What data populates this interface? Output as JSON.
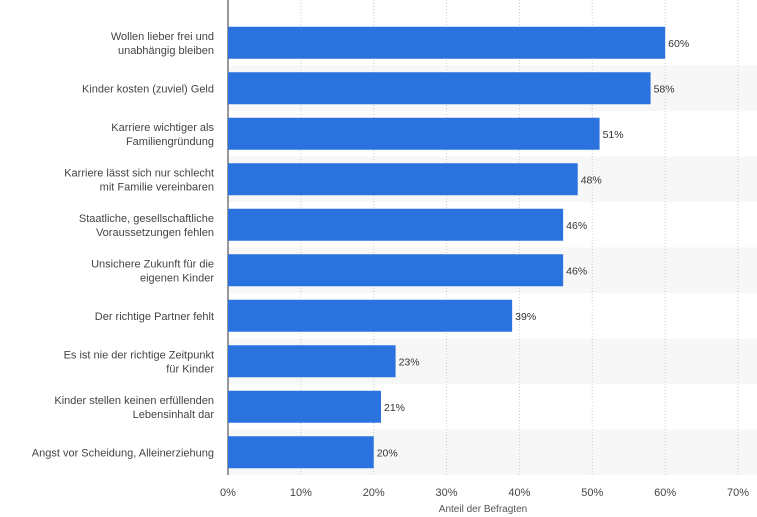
{
  "chart_data": {
    "type": "bar",
    "orientation": "horizontal",
    "categories": [
      [
        "Wollen lieber frei und",
        "unabhängig bleiben"
      ],
      [
        "Kinder kosten (zuviel) Geld"
      ],
      [
        "Karriere wichtiger als",
        "Familiengründung"
      ],
      [
        "Karriere lässt sich nur schlecht",
        "mit Familie vereinbaren"
      ],
      [
        "Staatliche, gesellschaftliche",
        "Voraussetzungen fehlen"
      ],
      [
        "Unsichere Zukunft für die",
        "eigenen Kinder"
      ],
      [
        "Der richtige Partner fehlt"
      ],
      [
        "Es ist nie der richtige Zeitpunkt",
        "für Kinder"
      ],
      [
        "Kinder stellen keinen erfüllenden",
        "Lebensinhalt dar"
      ],
      [
        "Angst vor Scheidung, Alleinerziehung"
      ]
    ],
    "values": [
      60,
      58,
      51,
      48,
      46,
      46,
      39,
      23,
      21,
      20
    ],
    "value_labels": [
      "60%",
      "58%",
      "51%",
      "48%",
      "46%",
      "46%",
      "39%",
      "23%",
      "21%",
      "20%"
    ],
    "xlim": [
      0,
      70
    ],
    "xticks": [
      0,
      10,
      20,
      30,
      40,
      50,
      60,
      70
    ],
    "xtick_labels": [
      "0%",
      "10%",
      "20%",
      "30%",
      "40%",
      "50%",
      "60%",
      "70%"
    ],
    "xlabel": "Anteil der Befragten",
    "grid": true,
    "bar_color": "#2a72de",
    "band_color": "#f7f7f7"
  }
}
